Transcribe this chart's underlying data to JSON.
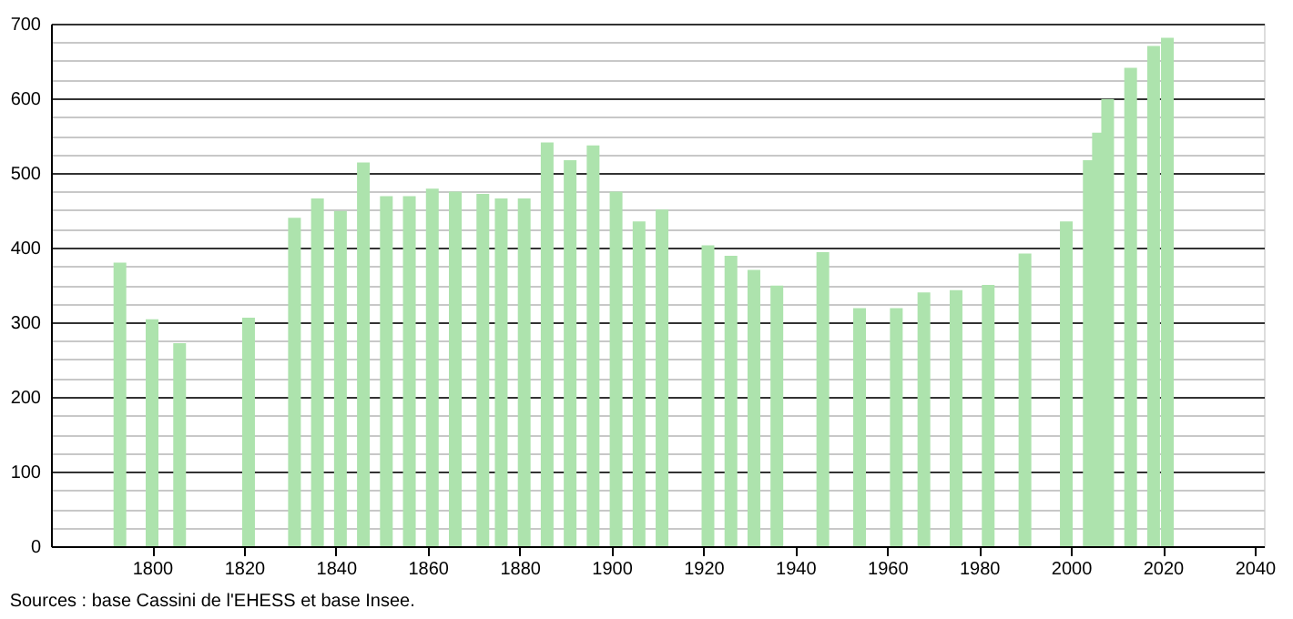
{
  "chart_data": {
    "type": "bar",
    "x": [
      1793,
      1800,
      1806,
      1821,
      1831,
      1836,
      1841,
      1846,
      1851,
      1856,
      1861,
      1866,
      1872,
      1876,
      1881,
      1886,
      1891,
      1896,
      1901,
      1906,
      1911,
      1921,
      1926,
      1931,
      1936,
      1946,
      1954,
      1962,
      1968,
      1975,
      1982,
      1990,
      1999,
      2004,
      2006,
      2008,
      2013,
      2018,
      2021
    ],
    "values": [
      380,
      304,
      272,
      306,
      440,
      466,
      449,
      514,
      469,
      469,
      479,
      475,
      472,
      466,
      466,
      541,
      517,
      537,
      475,
      435,
      451,
      403,
      389,
      370,
      349,
      394,
      319,
      319,
      340,
      343,
      350,
      392,
      435,
      517,
      554,
      599,
      641,
      670,
      681
    ],
    "color": "#ade3ad",
    "xlim": [
      1778,
      2042
    ],
    "xticks": [
      1800,
      1820,
      1840,
      1860,
      1880,
      1900,
      1920,
      1940,
      1960,
      1980,
      2000,
      2020,
      2040
    ],
    "ylim": [
      0,
      700
    ],
    "yticks": [
      0,
      {
        "value": 25,
        "label": null
      },
      {
        "value": 50,
        "label": null
      },
      {
        "value": 75,
        "label": null
      },
      100,
      {
        "value": 125,
        "label": null
      },
      {
        "value": 150,
        "label": null
      },
      {
        "value": 175,
        "label": null
      },
      200,
      {
        "value": 225,
        "label": null
      },
      {
        "value": 250,
        "label": null
      },
      {
        "value": 275,
        "label": null
      },
      300,
      {
        "value": 325,
        "label": null
      },
      {
        "value": 350,
        "label": null
      },
      {
        "value": 375,
        "label": null
      },
      400,
      {
        "value": 425,
        "label": null
      },
      {
        "value": 450,
        "label": null
      },
      {
        "value": 475,
        "label": null
      },
      500,
      {
        "value": 525,
        "label": null
      },
      {
        "value": 550,
        "label": null
      },
      {
        "value": 575,
        "label": null
      },
      600,
      {
        "value": 625,
        "label": null
      },
      {
        "value": 650,
        "label": null
      },
      {
        "value": 675,
        "label": null
      },
      700
    ],
    "grid": "y",
    "annotations": [
      "Sources : base Cassini de l'EHESS et base Insee."
    ]
  }
}
